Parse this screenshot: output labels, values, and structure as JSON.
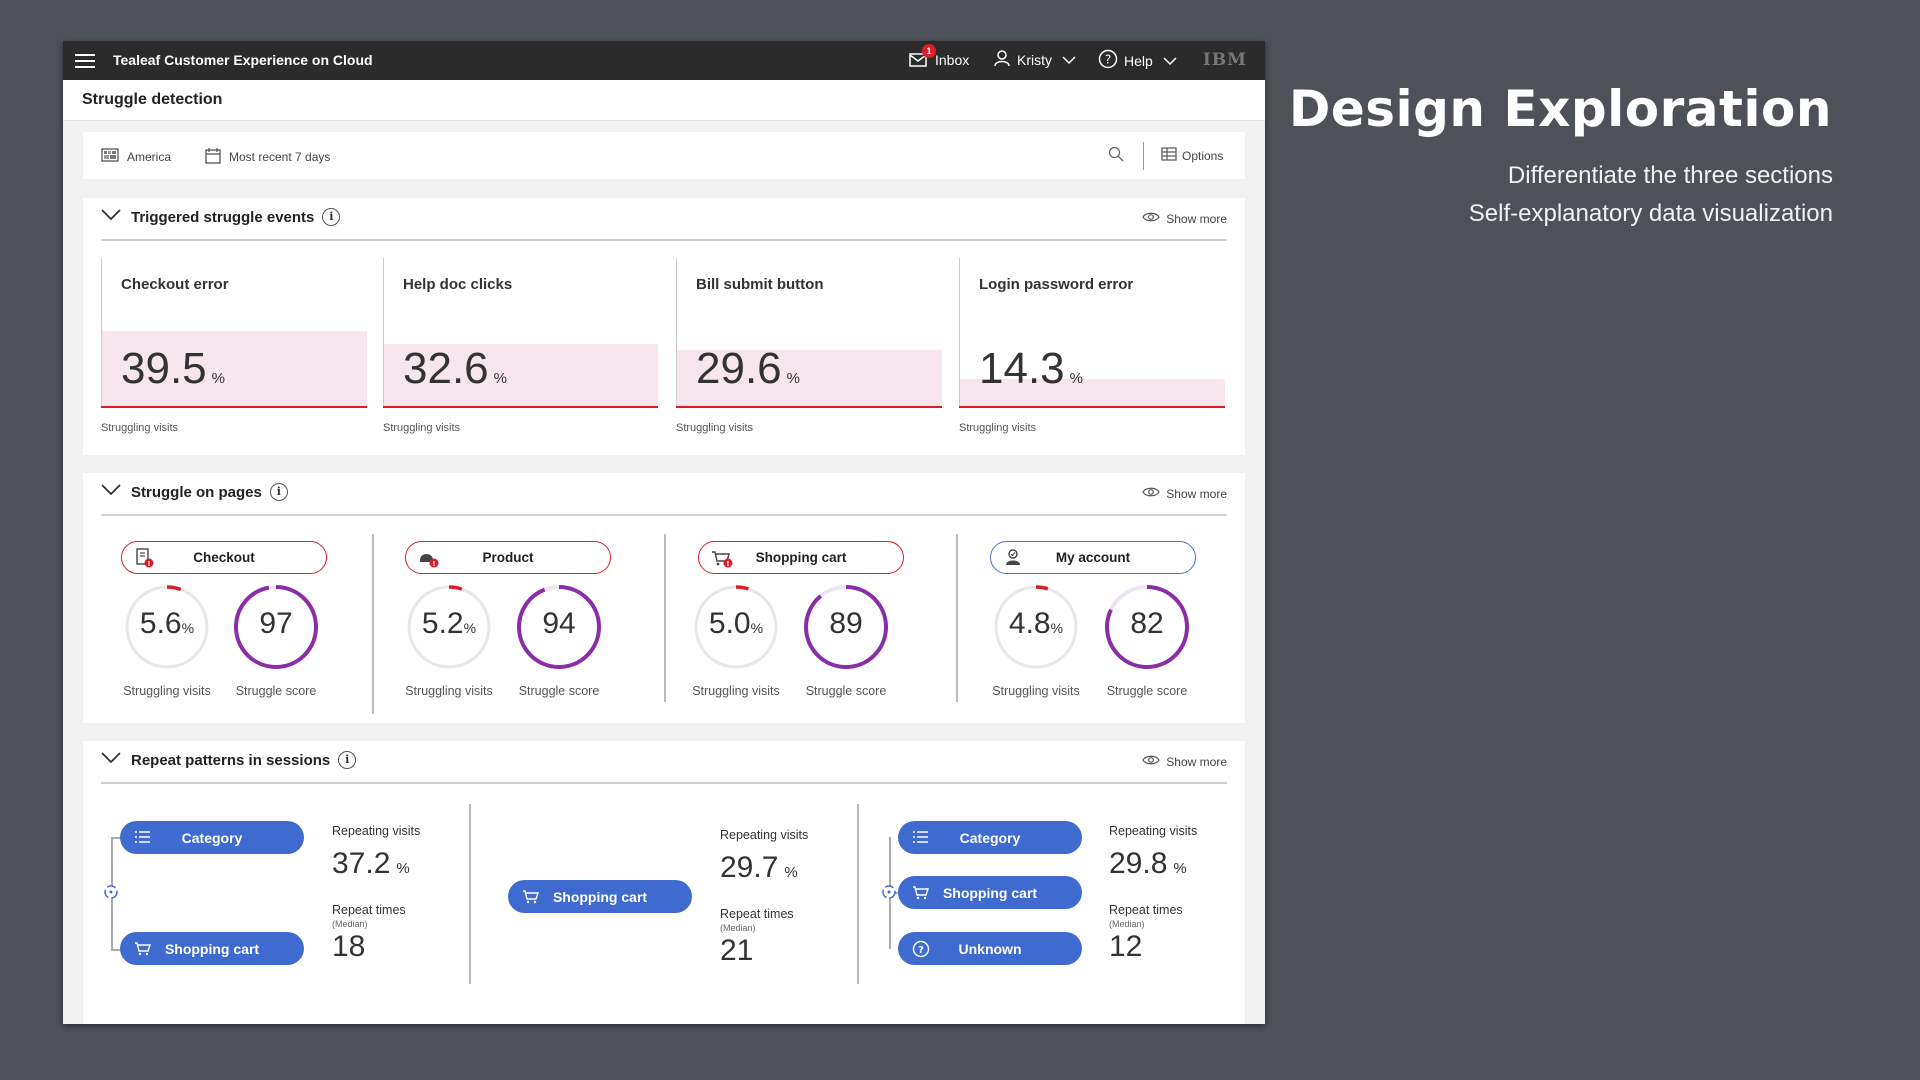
{
  "side": {
    "title": "Design Exploration",
    "subtitle_1": "Differentiate the three sections",
    "subtitle_2": "Self-explanatory data visualization"
  },
  "topbar": {
    "app_title": "Tealeaf Customer Experience on Cloud",
    "inbox_label": "Inbox",
    "inbox_badge": "1",
    "user_label": "Kristy",
    "help_label": "Help",
    "brand": "IBM"
  },
  "page": {
    "title": "Struggle detection"
  },
  "filters": {
    "region": "America",
    "date_range": "Most recent 7 days",
    "options_label": "Options"
  },
  "triggered": {
    "title": "Triggered struggle events",
    "show_more": "Show more",
    "cards": [
      {
        "title": "Checkout error",
        "value": "39.5",
        "unit": "%",
        "sub": "Struggling visits",
        "fill": 39.5
      },
      {
        "title": "Help doc clicks",
        "value": "32.6",
        "unit": "%",
        "sub": "Struggling visits",
        "fill": 32.6
      },
      {
        "title": "Bill submit button",
        "value": "29.6",
        "unit": "%",
        "sub": "Struggling visits",
        "fill": 29.6
      },
      {
        "title": "Login password error",
        "value": "14.3",
        "unit": "%",
        "sub": "Struggling visits",
        "fill": 14.3
      }
    ]
  },
  "pages": {
    "title": "Struggle on pages",
    "show_more": "Show more",
    "columns": [
      {
        "name": "Checkout",
        "visits": "5.6",
        "visits_unit": "%",
        "visits_label": "Struggling visits",
        "score": "97",
        "score_label": "Struggle score",
        "visits_frac": 0.056,
        "score_frac": 0.97
      },
      {
        "name": "Product",
        "visits": "5.2",
        "visits_unit": "%",
        "visits_label": "Struggling visits",
        "score": "94",
        "score_label": "Struggle score",
        "visits_frac": 0.052,
        "score_frac": 0.94
      },
      {
        "name": "Shopping cart",
        "visits": "5.0",
        "visits_unit": "%",
        "visits_label": "Struggling visits",
        "score": "89",
        "score_label": "Struggle score",
        "visits_frac": 0.05,
        "score_frac": 0.89
      },
      {
        "name": "My account",
        "visits": "4.8",
        "visits_unit": "%",
        "visits_label": "Struggling visits",
        "score": "82",
        "score_label": "Struggle score",
        "visits_frac": 0.048,
        "score_frac": 0.82
      }
    ]
  },
  "repeat": {
    "title": "Repeat patterns in sessions",
    "show_more": "Show more",
    "repeating_label": "Repeating visits",
    "times_label": "Repeat times",
    "median_label": "(Median)",
    "groups": [
      {
        "steps": [
          "Category",
          "Shopping cart"
        ],
        "repeating": "37.2",
        "unit": "%",
        "times": "18"
      },
      {
        "steps": [
          "Shopping cart"
        ],
        "repeating": "29.7",
        "unit": "%",
        "times": "21"
      },
      {
        "steps": [
          "Category",
          "Shopping cart",
          "Unknown"
        ],
        "repeating": "29.8",
        "unit": "%",
        "times": "12"
      }
    ]
  },
  "colors": {
    "topbar": "#2b2b2c",
    "alert_red": "#da1e28",
    "event_fill": "#f7e6ed",
    "score_purple": "#8a2ea8",
    "pattern_blue": "#3f6bd1"
  }
}
